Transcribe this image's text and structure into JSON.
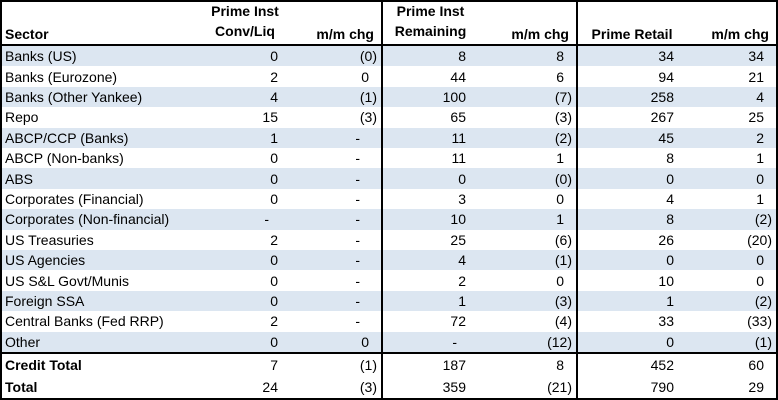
{
  "chart_data": {
    "type": "table",
    "header": {
      "sector": "Sector",
      "group1": {
        "line1": "Prime Inst",
        "line2": "Conv/Liq",
        "chg": "m/m chg"
      },
      "group2": {
        "line1": "Prime Inst",
        "line2": "Remaining",
        "chg": "m/m chg"
      },
      "group3": {
        "label": "Prime Retail",
        "chg": "m/m chg"
      }
    },
    "rows": [
      {
        "sector": "Banks (US)",
        "conv_liq": "0",
        "conv_chg": "(0)",
        "remaining": "8",
        "rem_chg": "8",
        "retail": "34",
        "retail_chg": "34"
      },
      {
        "sector": "Banks (Eurozone)",
        "conv_liq": "2",
        "conv_chg": "0",
        "remaining": "44",
        "rem_chg": "6",
        "retail": "94",
        "retail_chg": "21"
      },
      {
        "sector": "Banks (Other Yankee)",
        "conv_liq": "4",
        "conv_chg": "(1)",
        "remaining": "100",
        "rem_chg": "(7)",
        "retail": "258",
        "retail_chg": "4"
      },
      {
        "sector": "Repo",
        "conv_liq": "15",
        "conv_chg": "(3)",
        "remaining": "65",
        "rem_chg": "(3)",
        "retail": "267",
        "retail_chg": "25"
      },
      {
        "sector": "ABCP/CCP (Banks)",
        "conv_liq": "1",
        "conv_chg": "-",
        "remaining": "11",
        "rem_chg": "(2)",
        "retail": "45",
        "retail_chg": "2"
      },
      {
        "sector": "ABCP (Non-banks)",
        "conv_liq": "0",
        "conv_chg": "-",
        "remaining": "11",
        "rem_chg": "1",
        "retail": "8",
        "retail_chg": "1"
      },
      {
        "sector": "ABS",
        "conv_liq": "0",
        "conv_chg": "-",
        "remaining": "0",
        "rem_chg": "(0)",
        "retail": "0",
        "retail_chg": "0"
      },
      {
        "sector": "Corporates (Financial)",
        "conv_liq": "0",
        "conv_chg": "-",
        "remaining": "3",
        "rem_chg": "0",
        "retail": "4",
        "retail_chg": "1"
      },
      {
        "sector": "Corporates (Non-financial)",
        "conv_liq": "-",
        "conv_chg": "-",
        "remaining": "10",
        "rem_chg": "1",
        "retail": "8",
        "retail_chg": "(2)"
      },
      {
        "sector": "US Treasuries",
        "conv_liq": "2",
        "conv_chg": "-",
        "remaining": "25",
        "rem_chg": "(6)",
        "retail": "26",
        "retail_chg": "(20)"
      },
      {
        "sector": "US Agencies",
        "conv_liq": "0",
        "conv_chg": "-",
        "remaining": "4",
        "rem_chg": "(1)",
        "retail": "0",
        "retail_chg": "0"
      },
      {
        "sector": "US S&L Govt/Munis",
        "conv_liq": "0",
        "conv_chg": "-",
        "remaining": "2",
        "rem_chg": "0",
        "retail": "10",
        "retail_chg": "0"
      },
      {
        "sector": "Foreign SSA",
        "conv_liq": "0",
        "conv_chg": "-",
        "remaining": "1",
        "rem_chg": "(3)",
        "retail": "1",
        "retail_chg": "(2)"
      },
      {
        "sector": "Central Banks (Fed RRP)",
        "conv_liq": "2",
        "conv_chg": "-",
        "remaining": "72",
        "rem_chg": "(4)",
        "retail": "33",
        "retail_chg": "(33)"
      },
      {
        "sector": "Other",
        "conv_liq": "0",
        "conv_chg": "0",
        "remaining": "-",
        "rem_chg": "(12)",
        "retail": "0",
        "retail_chg": "(1)"
      }
    ],
    "total_rows": [
      {
        "sector": "Credit Total",
        "conv_liq": "7",
        "conv_chg": "(1)",
        "remaining": "187",
        "rem_chg": "8",
        "retail": "452",
        "retail_chg": "60"
      },
      {
        "sector": "Total",
        "conv_liq": "24",
        "conv_chg": "(3)",
        "remaining": "359",
        "rem_chg": "(21)",
        "retail": "790",
        "retail_chg": "29"
      }
    ],
    "colors": {
      "stripe": "#dce6f1",
      "border": "#000000",
      "background": "#ffffff",
      "text": "#000000"
    },
    "layout": {
      "negative_format": "parentheses",
      "nil_format": "-",
      "stripe_pattern": "alternating starting with stripe on first data row"
    }
  }
}
